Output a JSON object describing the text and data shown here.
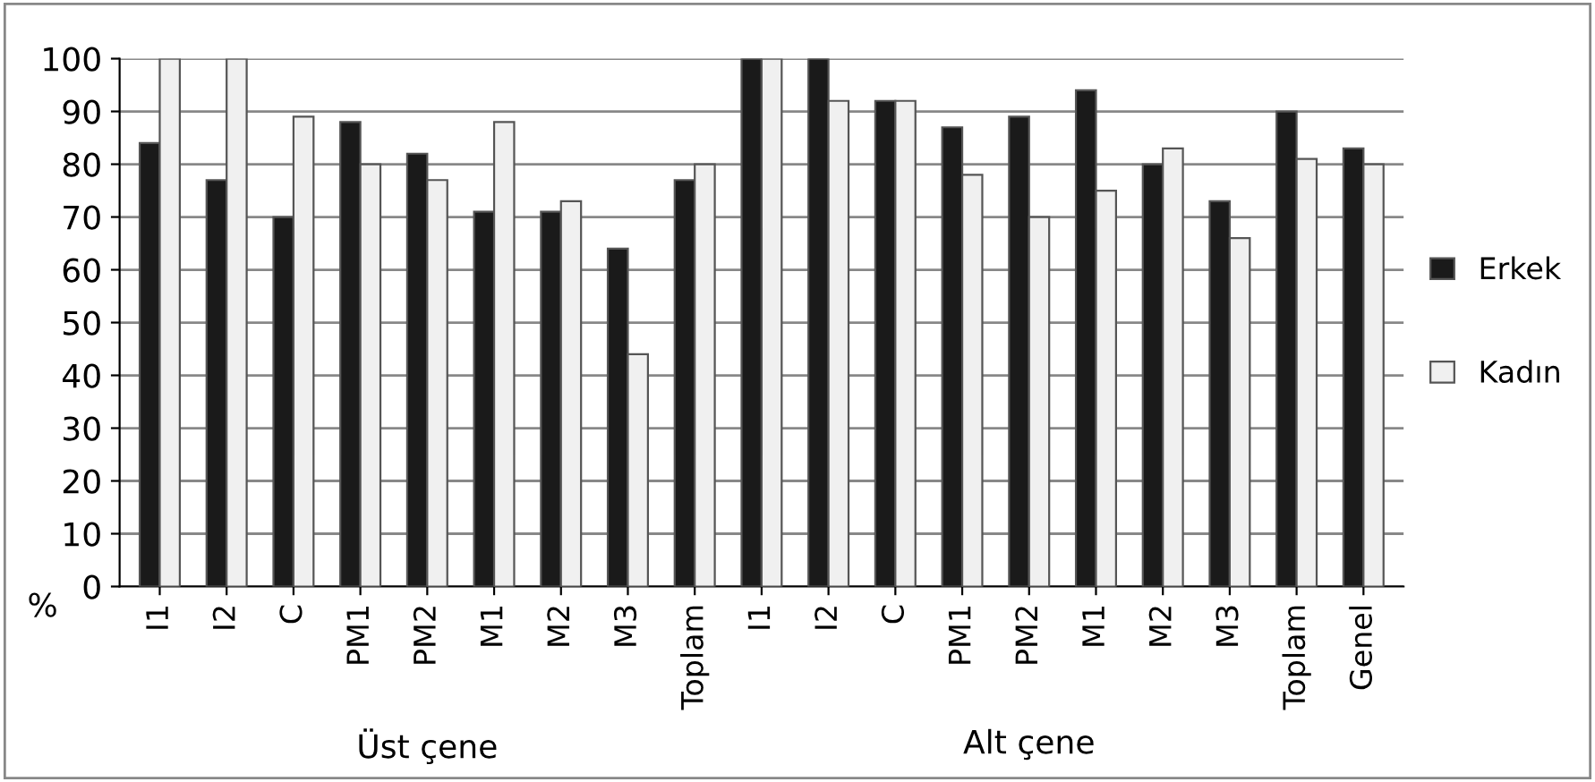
{
  "chart_data": {
    "type": "bar",
    "ylabel": "%",
    "categories": [
      "I1",
      "I2",
      "C",
      "PM1",
      "PM2",
      "M1",
      "M2",
      "M3",
      "Toplam",
      "I1",
      "I2",
      "C",
      "PM1",
      "PM2",
      "M1",
      "M2",
      "M3",
      "Toplam",
      "Genel"
    ],
    "series": [
      {
        "name": "Erkek",
        "color": "#1a1a1a",
        "values": [
          84,
          77,
          70,
          88,
          82,
          71,
          71,
          64,
          77,
          100,
          100,
          92,
          87,
          89,
          94,
          80,
          73,
          90,
          83
        ]
      },
      {
        "name": "Kadın",
        "color": "#f0f0f0",
        "values": [
          100,
          100,
          89,
          80,
          77,
          88,
          73,
          44,
          80,
          100,
          92,
          92,
          78,
          70,
          75,
          83,
          66,
          81,
          80
        ]
      }
    ],
    "ylim": [
      0,
      100
    ],
    "yticks": [
      0,
      10,
      20,
      30,
      40,
      50,
      60,
      70,
      80,
      90,
      100
    ],
    "grid": "y",
    "legend": "right",
    "annotations": [
      "Üst çene",
      "Alt çene"
    ]
  }
}
